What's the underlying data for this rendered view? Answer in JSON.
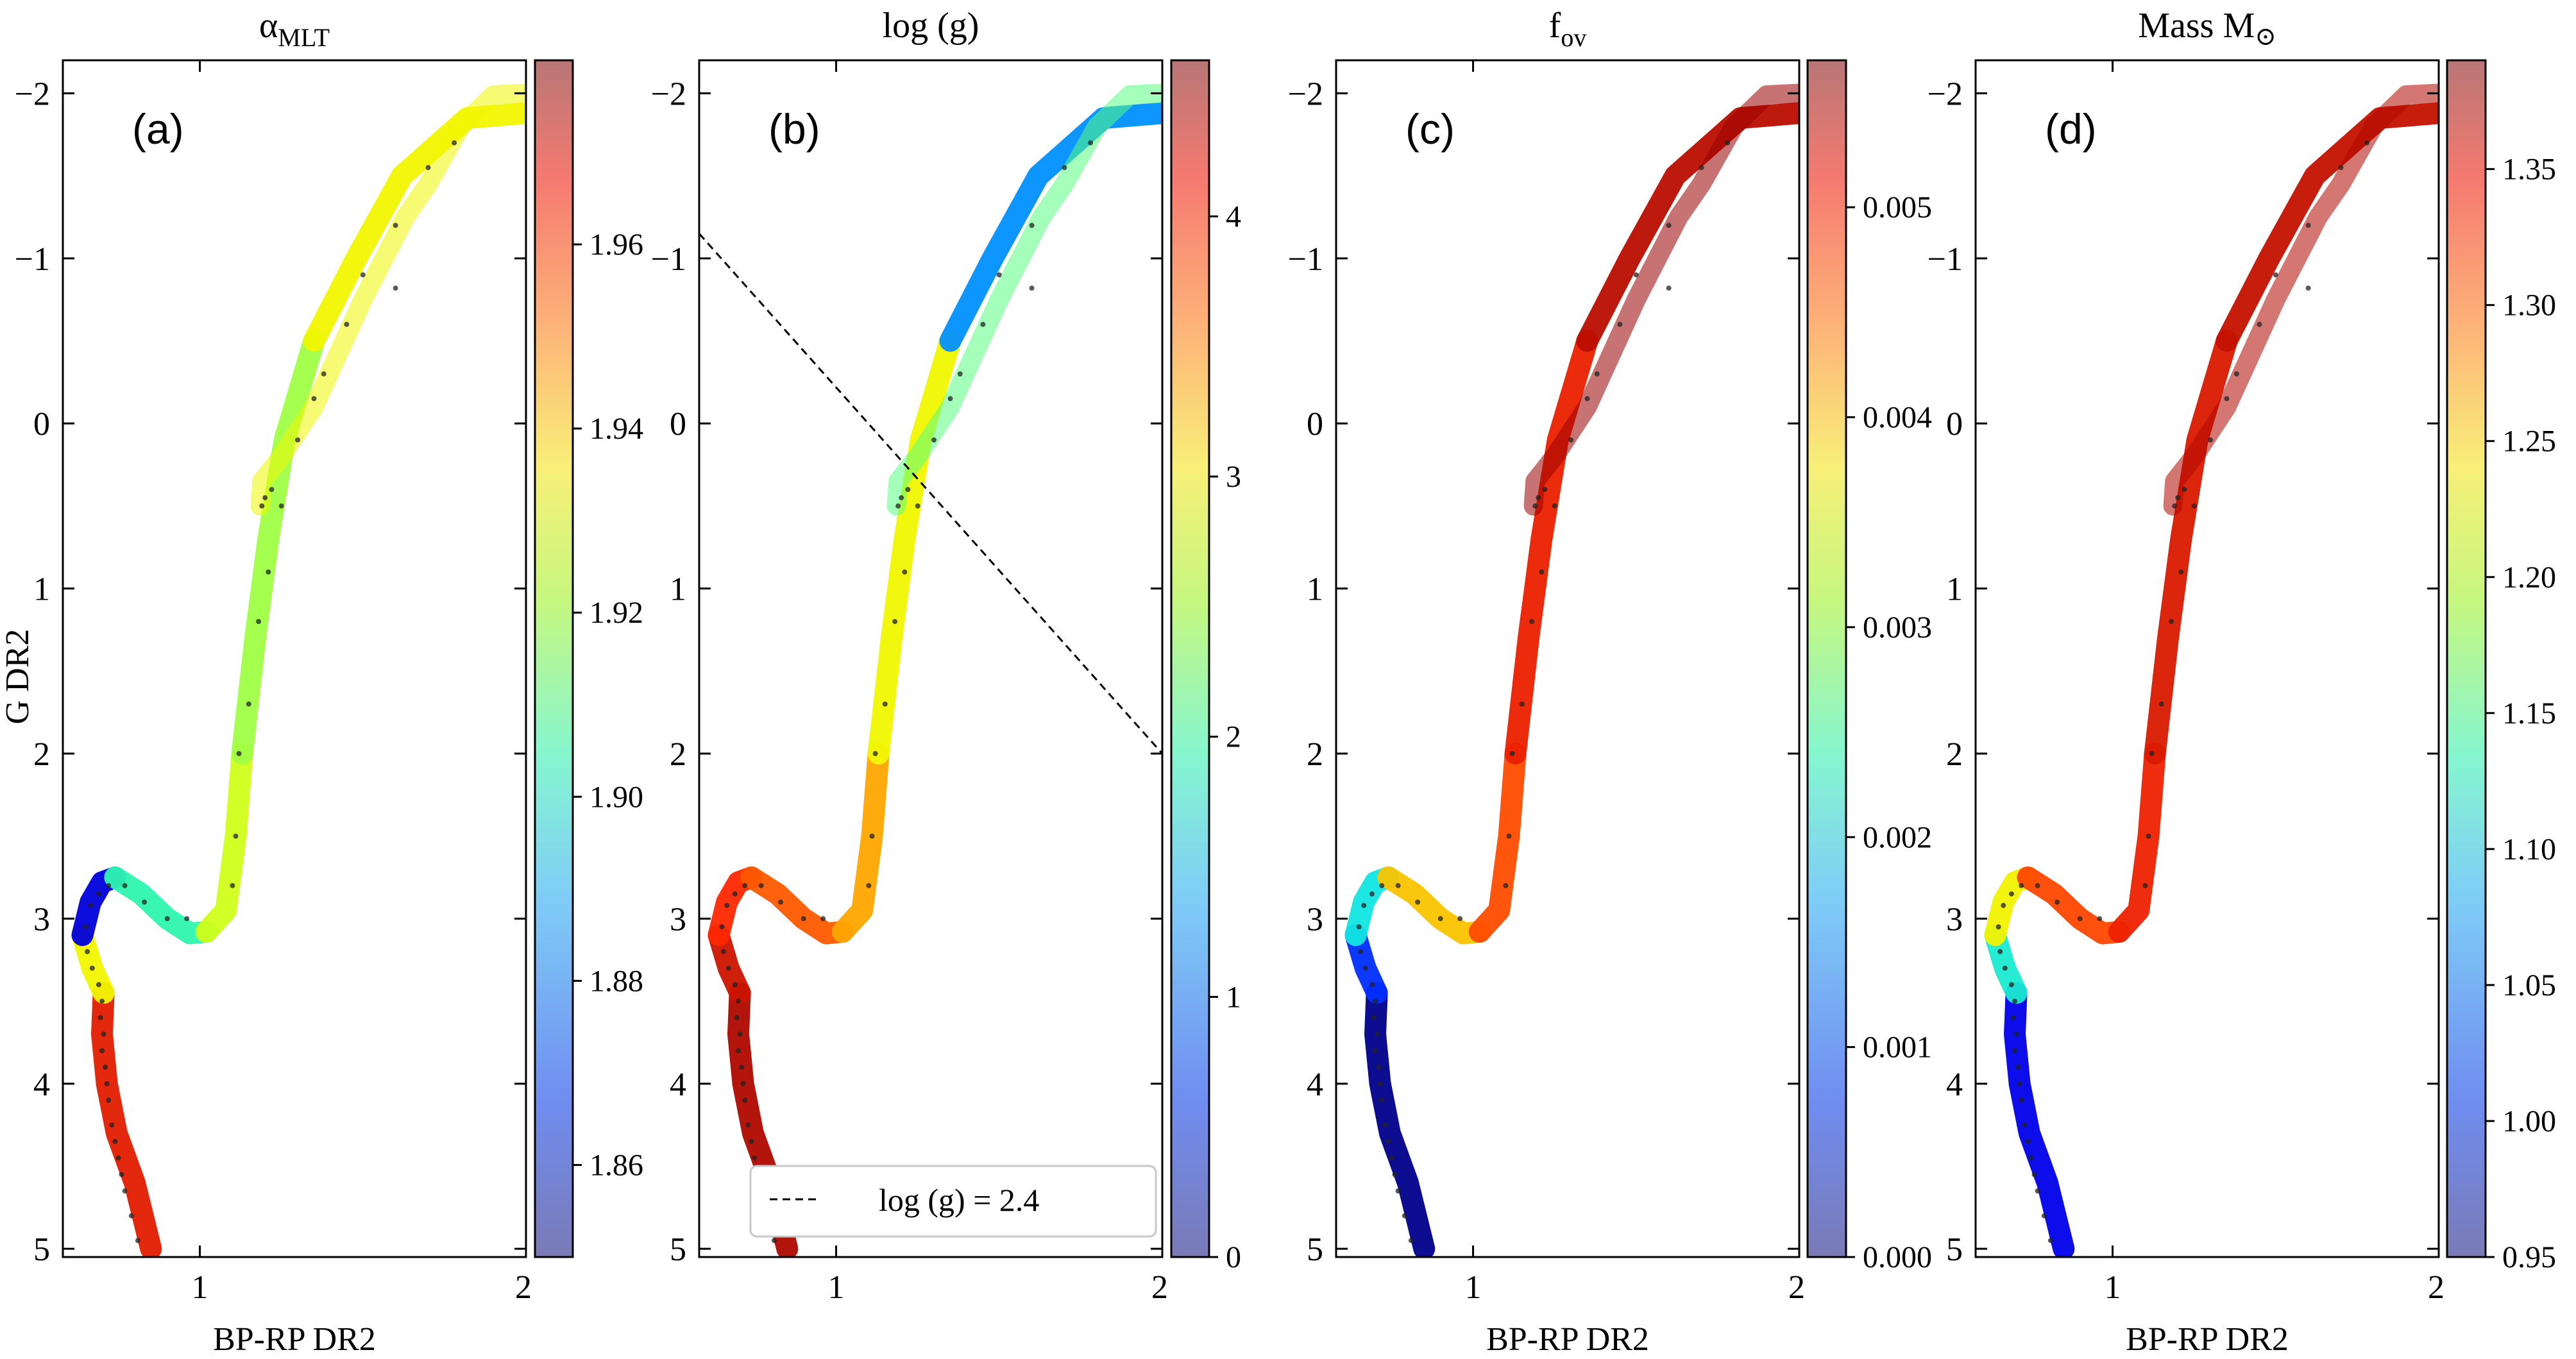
{
  "figure": {
    "ylabel": "G DR2",
    "xlabel": "BP-RP DR2"
  },
  "chart_data": [
    {
      "type": "scatter",
      "panel_label": "(a)",
      "title_main": "α",
      "title_sub": "MLT",
      "title_sym": "",
      "xlabel": "BP-RP DR2",
      "ylabel": "G DR2",
      "xlim": [
        0.58,
        2.0
      ],
      "ylim": [
        5.05,
        -2.2
      ],
      "y_inverted": true,
      "xticks": [
        "1",
        "2"
      ],
      "yticks": [
        "−2",
        "−1",
        "0",
        "1",
        "2",
        "3",
        "4",
        "5"
      ],
      "colorbar": {
        "min": 1.85,
        "max": 1.98,
        "ticks": [
          "1.86",
          "1.88",
          "1.90",
          "1.92",
          "1.94",
          "1.96"
        ],
        "colormap": "jet"
      },
      "colors_by_segment": {
        "main_sequence_lower": 1.97,
        "main_sequence_upper": 1.935,
        "turnoff": 1.86,
        "hook": 1.91,
        "subgiant": 1.93,
        "rgb_lower": 1.925,
        "rgb_upper": 1.935,
        "red_clump": 1.935,
        "agb": 1.935
      }
    },
    {
      "type": "scatter",
      "panel_label": "(b)",
      "title_main": "log (g)",
      "title_sub": "",
      "title_sym": "",
      "xlabel": "",
      "xlim": [
        0.58,
        2.0
      ],
      "ylim": [
        5.05,
        -2.2
      ],
      "xticks": [
        "1",
        "2"
      ],
      "yticks": [
        "−2",
        "−1",
        "0",
        "1",
        "2",
        "3",
        "4",
        "5"
      ],
      "colorbar": {
        "min": 0,
        "max": 4.6,
        "ticks": [
          "0",
          "1",
          "2",
          "3",
          "4"
        ],
        "colormap": "jet"
      },
      "colors_by_segment": {
        "main_sequence_lower": 4.5,
        "main_sequence_upper": 4.35,
        "turnoff": 4.1,
        "hook": 3.9,
        "subgiant": 3.6,
        "rgb_lower": 3.0,
        "rgb_upper": 1.2,
        "red_clump": 2.4,
        "agb": 0.5
      },
      "reference_line": {
        "x": [
          0.58,
          2.0
        ],
        "y": [
          -1.15,
          2.0
        ],
        "label": "log (g) = 2.4",
        "style": "dashed"
      },
      "legend_placement": "lower-right"
    },
    {
      "type": "scatter",
      "panel_label": "(c)",
      "title_main": "f",
      "title_sub": "ov",
      "title_sym": "",
      "xlabel": "BP-RP DR2",
      "xlim": [
        0.58,
        2.0
      ],
      "ylim": [
        5.05,
        -2.2
      ],
      "xticks": [
        "1",
        "2"
      ],
      "yticks": [
        "−2",
        "−1",
        "0",
        "1",
        "2",
        "3",
        "4",
        "5"
      ],
      "colorbar": {
        "min": 0.0,
        "max": 0.0057,
        "ticks": [
          "0.000",
          "0.001",
          "0.002",
          "0.003",
          "0.004",
          "0.005"
        ],
        "colormap": "jet"
      },
      "colors_by_segment": {
        "main_sequence_lower": 0.0,
        "main_sequence_upper": 0.0009,
        "turnoff": 0.0022,
        "hook": 0.0042,
        "subgiant": 0.0049,
        "rgb_lower": 0.0052,
        "rgb_upper": 0.0055,
        "red_clump": 0.0057,
        "agb": 0.0057
      }
    },
    {
      "type": "scatter",
      "panel_label": "(d)",
      "title_main": "Mass M",
      "title_sub": "",
      "title_sym": "⊙",
      "xlabel": "BP-RP DR2",
      "xlim": [
        0.58,
        2.0
      ],
      "ylim": [
        5.05,
        -2.2
      ],
      "xticks": [
        "1",
        "2"
      ],
      "yticks": [
        "−2",
        "−1",
        "0",
        "1",
        "2",
        "3",
        "4",
        "5"
      ],
      "colorbar": {
        "min": 0.95,
        "max": 1.39,
        "ticks": [
          "0.95",
          "1.00",
          "1.05",
          "1.10",
          "1.15",
          "1.20",
          "1.25",
          "1.30",
          "1.35"
        ],
        "colormap": "jet"
      },
      "colors_by_segment": {
        "main_sequence_lower": 0.99,
        "main_sequence_upper": 1.13,
        "turnoff": 1.24,
        "hook": 1.33,
        "subgiant": 1.35,
        "rgb_lower": 1.36,
        "rgb_upper": 1.37,
        "red_clump": 1.38,
        "agb": 1.38
      }
    }
  ],
  "tracks": {
    "main_sequence_lower": [
      [
        0.85,
        5.0
      ],
      [
        0.8,
        4.6
      ],
      [
        0.745,
        4.3
      ],
      [
        0.715,
        4.0
      ],
      [
        0.7,
        3.7
      ],
      [
        0.705,
        3.45
      ]
    ],
    "main_sequence_upper": [
      [
        0.705,
        3.45
      ],
      [
        0.67,
        3.3
      ],
      [
        0.64,
        3.1
      ]
    ],
    "turnoff": [
      [
        0.64,
        3.1
      ],
      [
        0.665,
        2.9
      ],
      [
        0.7,
        2.78
      ],
      [
        0.74,
        2.75
      ]
    ],
    "hook": [
      [
        0.74,
        2.75
      ],
      [
        0.82,
        2.85
      ],
      [
        0.9,
        3.0
      ],
      [
        0.97,
        3.09
      ],
      [
        1.02,
        3.08
      ]
    ],
    "subgiant": [
      [
        1.02,
        3.08
      ],
      [
        1.08,
        2.95
      ],
      [
        1.11,
        2.5
      ],
      [
        1.13,
        2.0
      ]
    ],
    "rgb_lower": [
      [
        1.13,
        2.0
      ],
      [
        1.17,
        1.3
      ],
      [
        1.21,
        0.7
      ],
      [
        1.26,
        0.1
      ],
      [
        1.35,
        -0.5
      ]
    ],
    "rgb_upper": [
      [
        1.35,
        -0.5
      ],
      [
        1.48,
        -1.0
      ],
      [
        1.62,
        -1.5
      ],
      [
        1.82,
        -1.85
      ],
      [
        2.0,
        -1.88
      ]
    ],
    "red_clump": [
      [
        1.185,
        0.5
      ],
      [
        1.19,
        0.35
      ],
      [
        1.25,
        0.2
      ],
      [
        1.35,
        -0.1
      ],
      [
        1.5,
        -0.75
      ],
      [
        1.63,
        -1.25
      ],
      [
        1.7,
        -1.45
      ],
      [
        1.8,
        -1.8
      ],
      [
        1.9,
        -1.99
      ],
      [
        2.0,
        -2.0
      ]
    ],
    "agb": []
  },
  "cluster_stars": [
    [
      0.81,
      4.95
    ],
    [
      0.79,
      4.8
    ],
    [
      0.77,
      4.65
    ],
    [
      0.76,
      4.55
    ],
    [
      0.75,
      4.45
    ],
    [
      0.74,
      4.35
    ],
    [
      0.73,
      4.25
    ],
    [
      0.72,
      4.1
    ],
    [
      0.715,
      4.0
    ],
    [
      0.71,
      3.9
    ],
    [
      0.7,
      3.8
    ],
    [
      0.705,
      3.7
    ],
    [
      0.695,
      3.6
    ],
    [
      0.7,
      3.5
    ],
    [
      0.69,
      3.4
    ],
    [
      0.67,
      3.3
    ],
    [
      0.655,
      3.2
    ],
    [
      0.65,
      3.05
    ],
    [
      0.665,
      2.92
    ],
    [
      0.69,
      2.85
    ],
    [
      0.72,
      2.8
    ],
    [
      0.77,
      2.8
    ],
    [
      0.83,
      2.9
    ],
    [
      0.9,
      3.0
    ],
    [
      0.96,
      3.0
    ],
    [
      1.1,
      2.8
    ],
    [
      1.11,
      2.5
    ],
    [
      1.12,
      2.0
    ],
    [
      1.15,
      1.7
    ],
    [
      1.18,
      1.2
    ],
    [
      1.21,
      0.9
    ],
    [
      1.25,
      0.5
    ],
    [
      1.3,
      0.1
    ],
    [
      1.35,
      -0.15
    ],
    [
      1.38,
      -0.3
    ],
    [
      1.45,
      -0.6
    ],
    [
      1.5,
      -0.9
    ],
    [
      1.6,
      -1.2
    ],
    [
      1.7,
      -1.55
    ],
    [
      1.78,
      -1.7
    ],
    [
      1.6,
      -0.82
    ],
    [
      1.2,
      0.45
    ],
    [
      1.19,
      0.5
    ],
    [
      1.22,
      0.4
    ]
  ]
}
